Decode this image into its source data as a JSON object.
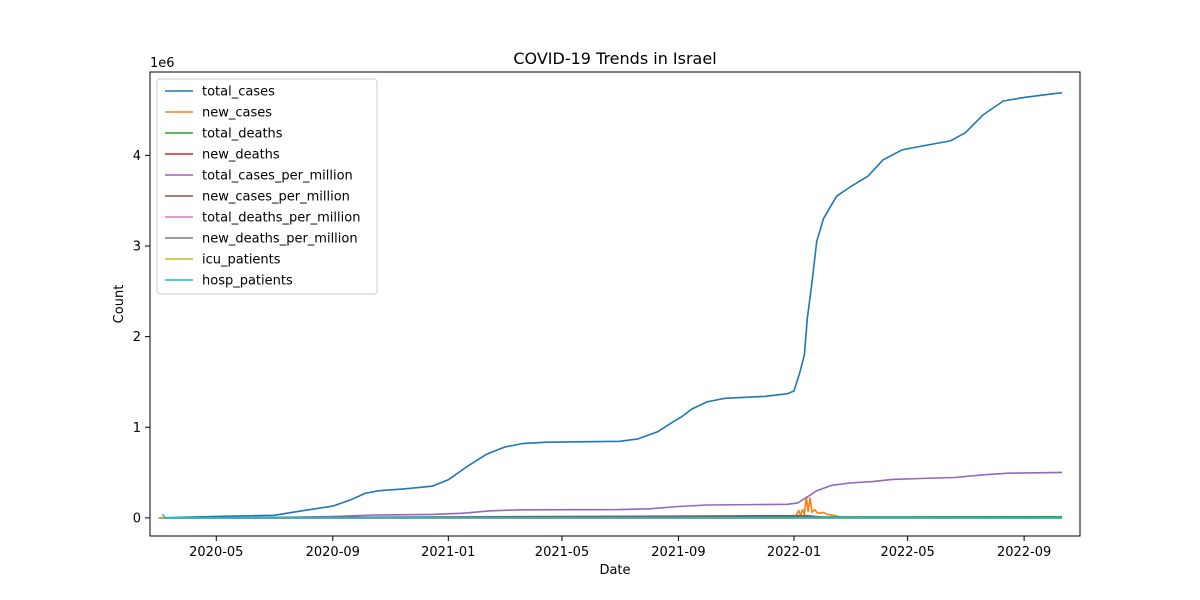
{
  "chart_data": {
    "type": "line",
    "title": "COVID-19 Trends in Israel",
    "xlabel": "Date",
    "ylabel": "Count",
    "y_offset_label": "1e6",
    "y_scale_factor": 1000000,
    "xlim": [
      "2020-02-21",
      "2022-10-30"
    ],
    "ylim": [
      -200000,
      4920000
    ],
    "x_ticks": [
      "2020-05-01",
      "2020-09-01",
      "2021-01-01",
      "2021-05-01",
      "2021-09-01",
      "2022-01-01",
      "2022-05-01",
      "2022-09-01"
    ],
    "x_tick_labels": [
      "2020-05",
      "2020-09",
      "2021-01",
      "2021-05",
      "2021-09",
      "2022-01",
      "2022-05",
      "2022-09"
    ],
    "y_ticks": [
      0,
      1000000,
      2000000,
      3000000,
      4000000
    ],
    "y_tick_labels": [
      "0",
      "1",
      "2",
      "3",
      "4"
    ],
    "grid": false,
    "legend_position": "upper-left",
    "series": [
      {
        "name": "total_cases",
        "color": "#1f77b4",
        "points": [
          [
            "2020-03-01",
            0
          ],
          [
            "2020-05-01",
            16000
          ],
          [
            "2020-07-01",
            28000
          ],
          [
            "2020-08-01",
            80000
          ],
          [
            "2020-09-01",
            130000
          ],
          [
            "2020-09-20",
            200000
          ],
          [
            "2020-10-05",
            270000
          ],
          [
            "2020-10-20",
            300000
          ],
          [
            "2020-11-15",
            320000
          ],
          [
            "2020-12-15",
            350000
          ],
          [
            "2021-01-01",
            420000
          ],
          [
            "2021-01-20",
            560000
          ],
          [
            "2021-02-10",
            700000
          ],
          [
            "2021-03-01",
            780000
          ],
          [
            "2021-03-20",
            820000
          ],
          [
            "2021-04-15",
            835000
          ],
          [
            "2021-07-01",
            845000
          ],
          [
            "2021-07-20",
            870000
          ],
          [
            "2021-08-10",
            950000
          ],
          [
            "2021-08-25",
            1050000
          ],
          [
            "2021-09-05",
            1120000
          ],
          [
            "2021-09-15",
            1200000
          ],
          [
            "2021-10-01",
            1280000
          ],
          [
            "2021-10-20",
            1320000
          ],
          [
            "2021-12-01",
            1340000
          ],
          [
            "2021-12-25",
            1370000
          ],
          [
            "2022-01-01",
            1400000
          ],
          [
            "2022-01-07",
            1600000
          ],
          [
            "2022-01-12",
            1800000
          ],
          [
            "2022-01-15",
            2200000
          ],
          [
            "2022-01-20",
            2600000
          ],
          [
            "2022-01-25",
            3050000
          ],
          [
            "2022-02-01",
            3300000
          ],
          [
            "2022-02-15",
            3550000
          ],
          [
            "2022-03-01",
            3650000
          ],
          [
            "2022-03-20",
            3770000
          ],
          [
            "2022-04-05",
            3950000
          ],
          [
            "2022-04-25",
            4060000
          ],
          [
            "2022-05-20",
            4110000
          ],
          [
            "2022-06-15",
            4160000
          ],
          [
            "2022-07-01",
            4250000
          ],
          [
            "2022-07-20",
            4450000
          ],
          [
            "2022-08-10",
            4600000
          ],
          [
            "2022-09-01",
            4640000
          ],
          [
            "2022-10-01",
            4680000
          ],
          [
            "2022-10-11",
            4690000
          ]
        ]
      },
      {
        "name": "new_cases",
        "color": "#ff7f0e",
        "points": [
          [
            "2020-03-01",
            0
          ],
          [
            "2021-08-20",
            4000
          ],
          [
            "2021-09-01",
            9000
          ],
          [
            "2021-09-05",
            3000
          ],
          [
            "2021-12-25",
            3000
          ],
          [
            "2022-01-03",
            20000
          ],
          [
            "2022-01-06",
            80000
          ],
          [
            "2022-01-08",
            30000
          ],
          [
            "2022-01-10",
            90000
          ],
          [
            "2022-01-12",
            40000
          ],
          [
            "2022-01-14",
            230000
          ],
          [
            "2022-01-16",
            70000
          ],
          [
            "2022-01-18",
            220000
          ],
          [
            "2022-01-20",
            60000
          ],
          [
            "2022-01-23",
            90000
          ],
          [
            "2022-01-26",
            50000
          ],
          [
            "2022-02-01",
            60000
          ],
          [
            "2022-02-05",
            40000
          ],
          [
            "2022-02-10",
            30000
          ],
          [
            "2022-02-20",
            10000
          ],
          [
            "2022-03-01",
            6000
          ],
          [
            "2022-03-25",
            10000
          ],
          [
            "2022-04-05",
            6000
          ],
          [
            "2022-10-11",
            1000
          ]
        ]
      },
      {
        "name": "total_deaths",
        "color": "#2ca02c",
        "points": [
          [
            "2020-03-01",
            0
          ],
          [
            "2021-01-01",
            3500
          ],
          [
            "2021-09-01",
            7200
          ],
          [
            "2022-03-01",
            10400
          ],
          [
            "2022-10-11",
            11600
          ]
        ]
      },
      {
        "name": "new_deaths",
        "color": "#d62728",
        "points": [
          [
            "2020-03-01",
            0
          ],
          [
            "2022-10-11",
            5
          ]
        ]
      },
      {
        "name": "total_cases_per_million",
        "color": "#9467bd",
        "points": [
          [
            "2020-03-01",
            0
          ],
          [
            "2020-07-01",
            3000
          ],
          [
            "2020-09-01",
            14000
          ],
          [
            "2020-10-15",
            32000
          ],
          [
            "2020-12-15",
            38000
          ],
          [
            "2021-01-15",
            50000
          ],
          [
            "2021-02-15",
            78000
          ],
          [
            "2021-03-20",
            89000
          ],
          [
            "2021-07-01",
            91000
          ],
          [
            "2021-08-01",
            100000
          ],
          [
            "2021-09-01",
            125000
          ],
          [
            "2021-10-01",
            142000
          ],
          [
            "2021-12-25",
            150000
          ],
          [
            "2022-01-05",
            165000
          ],
          [
            "2022-01-15",
            230000
          ],
          [
            "2022-01-25",
            300000
          ],
          [
            "2022-02-10",
            360000
          ],
          [
            "2022-03-01",
            385000
          ],
          [
            "2022-03-25",
            400000
          ],
          [
            "2022-04-15",
            425000
          ],
          [
            "2022-05-15",
            435000
          ],
          [
            "2022-06-20",
            445000
          ],
          [
            "2022-07-20",
            475000
          ],
          [
            "2022-08-15",
            493000
          ],
          [
            "2022-10-11",
            502000
          ]
        ]
      },
      {
        "name": "new_cases_per_million",
        "color": "#8c564b",
        "points": [
          [
            "2020-03-01",
            0
          ],
          [
            "2022-01-15",
            24000
          ],
          [
            "2022-02-01",
            6000
          ],
          [
            "2022-10-11",
            150
          ]
        ]
      },
      {
        "name": "total_deaths_per_million",
        "color": "#e377c2",
        "points": [
          [
            "2020-03-01",
            0
          ],
          [
            "2022-10-11",
            1250
          ]
        ]
      },
      {
        "name": "new_deaths_per_million",
        "color": "#7f7f7f",
        "points": [
          [
            "2020-03-01",
            0
          ],
          [
            "2022-10-11",
            0
          ]
        ]
      },
      {
        "name": "icu_patients",
        "color": "#bcbd22",
        "points": [
          [
            "2020-03-01",
            0
          ],
          [
            "2021-01-20",
            1200
          ],
          [
            "2021-08-25",
            700
          ],
          [
            "2022-01-25",
            1000
          ],
          [
            "2022-10-11",
            100
          ]
        ]
      },
      {
        "name": "hosp_patients",
        "color": "#17becf",
        "points": [
          [
            "2020-03-05",
            40000
          ],
          [
            "2020-03-08",
            0
          ],
          [
            "2021-01-20",
            2500
          ],
          [
            "2021-08-25",
            1400
          ],
          [
            "2022-01-25",
            3000
          ],
          [
            "2022-10-11",
            250
          ]
        ]
      }
    ]
  }
}
